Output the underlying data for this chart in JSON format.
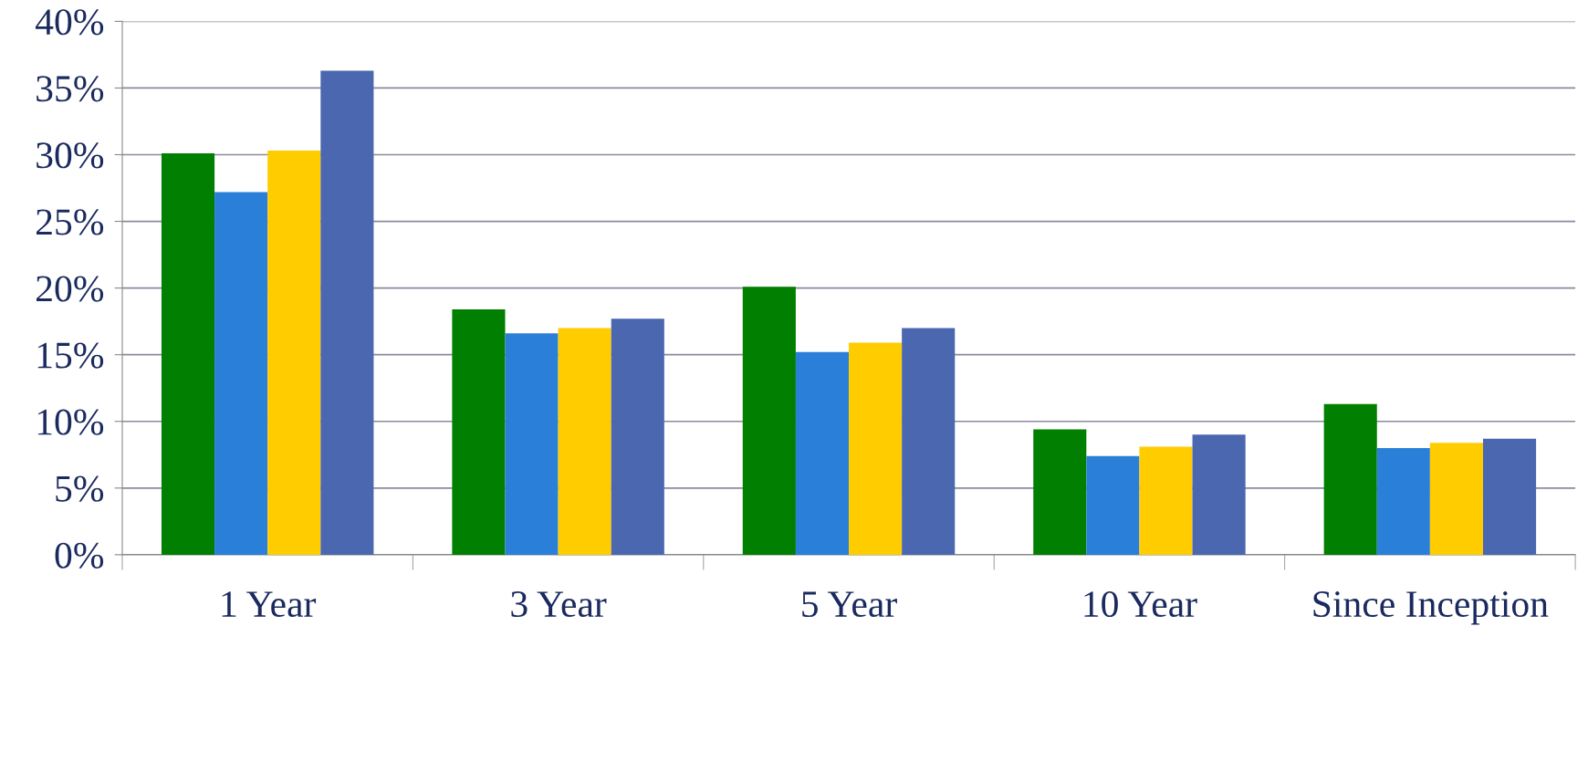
{
  "chart_data": {
    "type": "bar",
    "categories": [
      "1 Year",
      "3 Year",
      "5 Year",
      "10 Year",
      "Since Inception"
    ],
    "series": [
      {
        "color": "#007f00",
        "values": [
          30.1,
          18.4,
          20.1,
          9.4,
          11.3
        ]
      },
      {
        "color": "#2a7fd8",
        "values": [
          27.2,
          16.6,
          15.2,
          7.4,
          8.0
        ]
      },
      {
        "color": "#ffcc00",
        "values": [
          30.3,
          17.0,
          15.9,
          8.1,
          8.4
        ]
      },
      {
        "color": "#4a67b0",
        "values": [
          36.3,
          17.7,
          17.0,
          9.0,
          8.7
        ]
      }
    ],
    "ylim": [
      0,
      40
    ],
    "yticks": [
      {
        "value": 0,
        "label": "0%"
      },
      {
        "value": 5,
        "label": "5%"
      },
      {
        "value": 10,
        "label": "10%"
      },
      {
        "value": 15,
        "label": "15%"
      },
      {
        "value": 20,
        "label": "20%"
      },
      {
        "value": 25,
        "label": "25%"
      },
      {
        "value": 30,
        "label": "30%"
      },
      {
        "value": 35,
        "label": "35%"
      },
      {
        "value": 40,
        "label": "40%"
      }
    ],
    "grid": "y"
  }
}
